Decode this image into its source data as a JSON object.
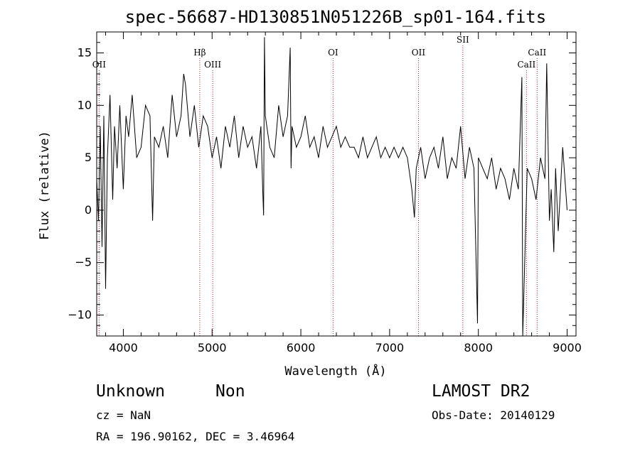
{
  "chart_data": {
    "type": "line",
    "title": "spec-56687-HD130851N051226B_sp01-164.fits",
    "xlabel": "Wavelength (Å)",
    "ylabel": "Flux (relative)",
    "xlim": [
      3700,
      9100
    ],
    "ylim": [
      -12,
      17
    ],
    "xticks": [
      4000,
      5000,
      6000,
      7000,
      8000,
      9000
    ],
    "yticks": [
      -10,
      -5,
      0,
      5,
      10,
      15
    ],
    "line_color": "#000000",
    "marker_color": "#b22222",
    "grid": false,
    "series": [
      {
        "x": [
          3700,
          3720,
          3740,
          3760,
          3780,
          3800,
          3820,
          3850,
          3880,
          3900,
          3930,
          3960,
          4000,
          4030,
          4060,
          4100,
          4150,
          4200,
          4250,
          4300,
          4330,
          4350,
          4400,
          4450,
          4500,
          4550,
          4600,
          4650,
          4680,
          4700,
          4750,
          4800,
          4850,
          4900,
          4950,
          5000,
          5050,
          5100,
          5150,
          5200,
          5250,
          5300,
          5350,
          5400,
          5450,
          5500,
          5550,
          5570,
          5580,
          5590,
          5600,
          5650,
          5700,
          5750,
          5800,
          5850,
          5880,
          5890,
          5900,
          5950,
          6000,
          6050,
          6100,
          6150,
          6200,
          6250,
          6300,
          6350,
          6400,
          6450,
          6500,
          6550,
          6600,
          6650,
          6700,
          6750,
          6800,
          6850,
          6900,
          6950,
          7000,
          7050,
          7100,
          7150,
          7200,
          7250,
          7280,
          7300,
          7350,
          7400,
          7450,
          7500,
          7550,
          7600,
          7650,
          7700,
          7750,
          7800,
          7850,
          7900,
          7950,
          7990,
          8000,
          8050,
          8100,
          8150,
          8200,
          8250,
          8300,
          8350,
          8400,
          8450,
          8490,
          8500,
          8550,
          8600,
          8650,
          8700,
          8750,
          8770,
          8800,
          8820,
          8850,
          8870,
          8900,
          8950,
          9000
        ],
        "y": [
          3,
          -1,
          8,
          -3.5,
          9,
          -7.5,
          5,
          11,
          1,
          8,
          4,
          10,
          2,
          9,
          7,
          11,
          5,
          6,
          10,
          9,
          -1,
          7,
          6,
          8,
          5,
          11,
          7,
          9,
          13,
          12,
          7,
          10,
          6,
          9,
          8,
          5,
          7,
          4,
          8,
          6,
          9,
          5,
          8,
          6,
          7,
          4,
          8,
          2,
          -0.5,
          16.5,
          9,
          6,
          5,
          10,
          7,
          9,
          15.5,
          4,
          8,
          6,
          7,
          9,
          6,
          7,
          5,
          8,
          6,
          7,
          8,
          6,
          7,
          6,
          6,
          5,
          7,
          5,
          6,
          7,
          5,
          6,
          5,
          6,
          5,
          6,
          5,
          2,
          -0.7,
          4,
          6,
          3,
          5,
          6,
          4,
          7,
          3,
          5,
          4,
          8,
          3,
          6,
          4,
          -10.8,
          5,
          4,
          3,
          5,
          2,
          4,
          3,
          1,
          4,
          2,
          12.7,
          -12,
          4,
          3,
          1,
          5,
          3,
          14,
          -1,
          2,
          -4,
          4,
          -2,
          6,
          0
        ]
      }
    ],
    "line_markers": [
      {
        "label": "OII",
        "x": 3727,
        "label_row": 2
      },
      {
        "label": "Hβ",
        "x": 4861,
        "label_row": 1
      },
      {
        "label": "OIII",
        "x": 5007,
        "label_row": 2
      },
      {
        "label": "OI",
        "x": 6363,
        "label_row": 1
      },
      {
        "label": "OII",
        "x": 7325,
        "label_row": 1
      },
      {
        "label": "SII",
        "x": 7825,
        "label_row": 0
      },
      {
        "label": "CaII",
        "x": 8542,
        "label_row": 2
      },
      {
        "label": "CaII",
        "x": 8662,
        "label_row": 1
      }
    ]
  },
  "footer": {
    "object": "Unknown",
    "class": "Non",
    "survey": "LAMOST DR2",
    "cz": "cz = NaN",
    "obs_date": "Obs-Date: 20140129",
    "radec": "RA = 196.90162, DEC =   3.46964"
  }
}
